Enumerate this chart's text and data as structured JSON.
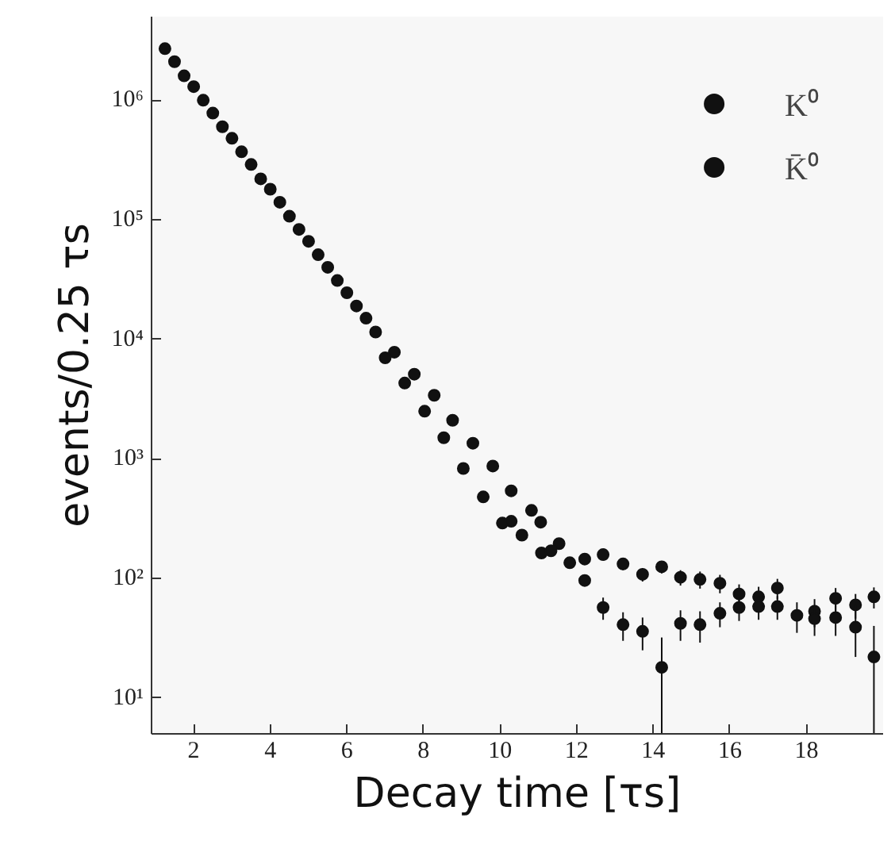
{
  "chart_data": {
    "type": "scatter",
    "xlabel": "Decay time [τs]",
    "ylabel": "events/0.25 τs",
    "log": "y",
    "xlim": [
      0.9,
      20
    ],
    "ylim": [
      5,
      5000000
    ],
    "xticks": [
      2,
      4,
      6,
      8,
      10,
      12,
      14,
      16,
      18
    ],
    "yticks": [
      {
        "value": 10,
        "label": "10¹"
      },
      {
        "value": 100,
        "label": "10²"
      },
      {
        "value": 1000,
        "label": "10³"
      },
      {
        "value": 10000,
        "label": "10⁴"
      },
      {
        "value": 100000,
        "label": "10⁵"
      },
      {
        "value": 1000000,
        "label": "10⁶"
      }
    ],
    "grid": false,
    "legend": "top right",
    "marker": "circle",
    "series": [
      {
        "name": "K⁰",
        "color": "#111111",
        "x": [
          1.25,
          1.75,
          2.25,
          2.75,
          3.25,
          3.75,
          4.25,
          4.75,
          5.25,
          5.75,
          6.25,
          6.75,
          7.24,
          7.76,
          8.28,
          8.76,
          9.29,
          9.81,
          10.29,
          10.82,
          11.06,
          11.54,
          12.21,
          12.69,
          13.21,
          13.72,
          14.22,
          14.71,
          15.22,
          15.74,
          16.24,
          16.75,
          17.24,
          17.75,
          18.21,
          18.76,
          19.28,
          19.76
        ],
        "values": [
          2700000,
          1600000,
          1000000,
          600000,
          370000,
          220000,
          140000,
          83000,
          51000,
          31000,
          19000,
          11500,
          7800,
          5100,
          3400,
          2100,
          1350,
          870,
          540,
          370,
          295,
          195,
          145,
          158,
          132,
          108,
          125,
          102,
          98,
          91,
          74,
          70,
          83,
          49,
          53,
          68,
          60,
          70
        ],
        "errors": [
          null,
          null,
          null,
          null,
          null,
          null,
          null,
          null,
          null,
          null,
          null,
          null,
          null,
          null,
          null,
          null,
          null,
          null,
          null,
          null,
          null,
          null,
          null,
          15,
          15,
          14,
          15,
          15,
          16,
          16,
          15,
          15,
          16,
          14,
          14,
          15,
          14,
          14
        ]
      },
      {
        "name": "K̄⁰",
        "color": "#111111",
        "x": [
          1.5,
          2.0,
          2.5,
          3.0,
          3.5,
          4.0,
          4.5,
          5.0,
          5.5,
          6.0,
          6.5,
          7.0,
          7.51,
          8.03,
          8.53,
          9.04,
          9.56,
          10.06,
          10.29,
          10.57,
          11.08,
          11.33,
          11.82,
          12.21,
          12.69,
          13.21,
          13.72,
          14.22,
          14.71,
          15.22,
          15.74,
          16.24,
          16.75,
          17.24,
          18.21,
          18.76,
          19.28,
          19.76
        ],
        "values": [
          2100000,
          1300000,
          780000,
          480000,
          290000,
          180000,
          107000,
          66000,
          40000,
          24500,
          15000,
          7000,
          4300,
          2500,
          1500,
          830,
          480,
          290,
          300,
          230,
          163,
          170,
          135,
          96,
          57,
          41,
          36,
          18,
          42,
          41,
          51,
          57,
          58,
          58,
          46,
          47,
          39,
          22
        ],
        "errors": [
          null,
          null,
          null,
          null,
          null,
          null,
          null,
          null,
          null,
          null,
          null,
          null,
          null,
          null,
          null,
          null,
          null,
          null,
          null,
          null,
          null,
          null,
          null,
          null,
          12,
          11,
          11,
          [
            5,
            32
          ],
          12,
          12,
          12,
          13,
          13,
          13,
          13,
          14,
          [
            22,
            60
          ],
          [
            5,
            40
          ]
        ]
      }
    ]
  }
}
